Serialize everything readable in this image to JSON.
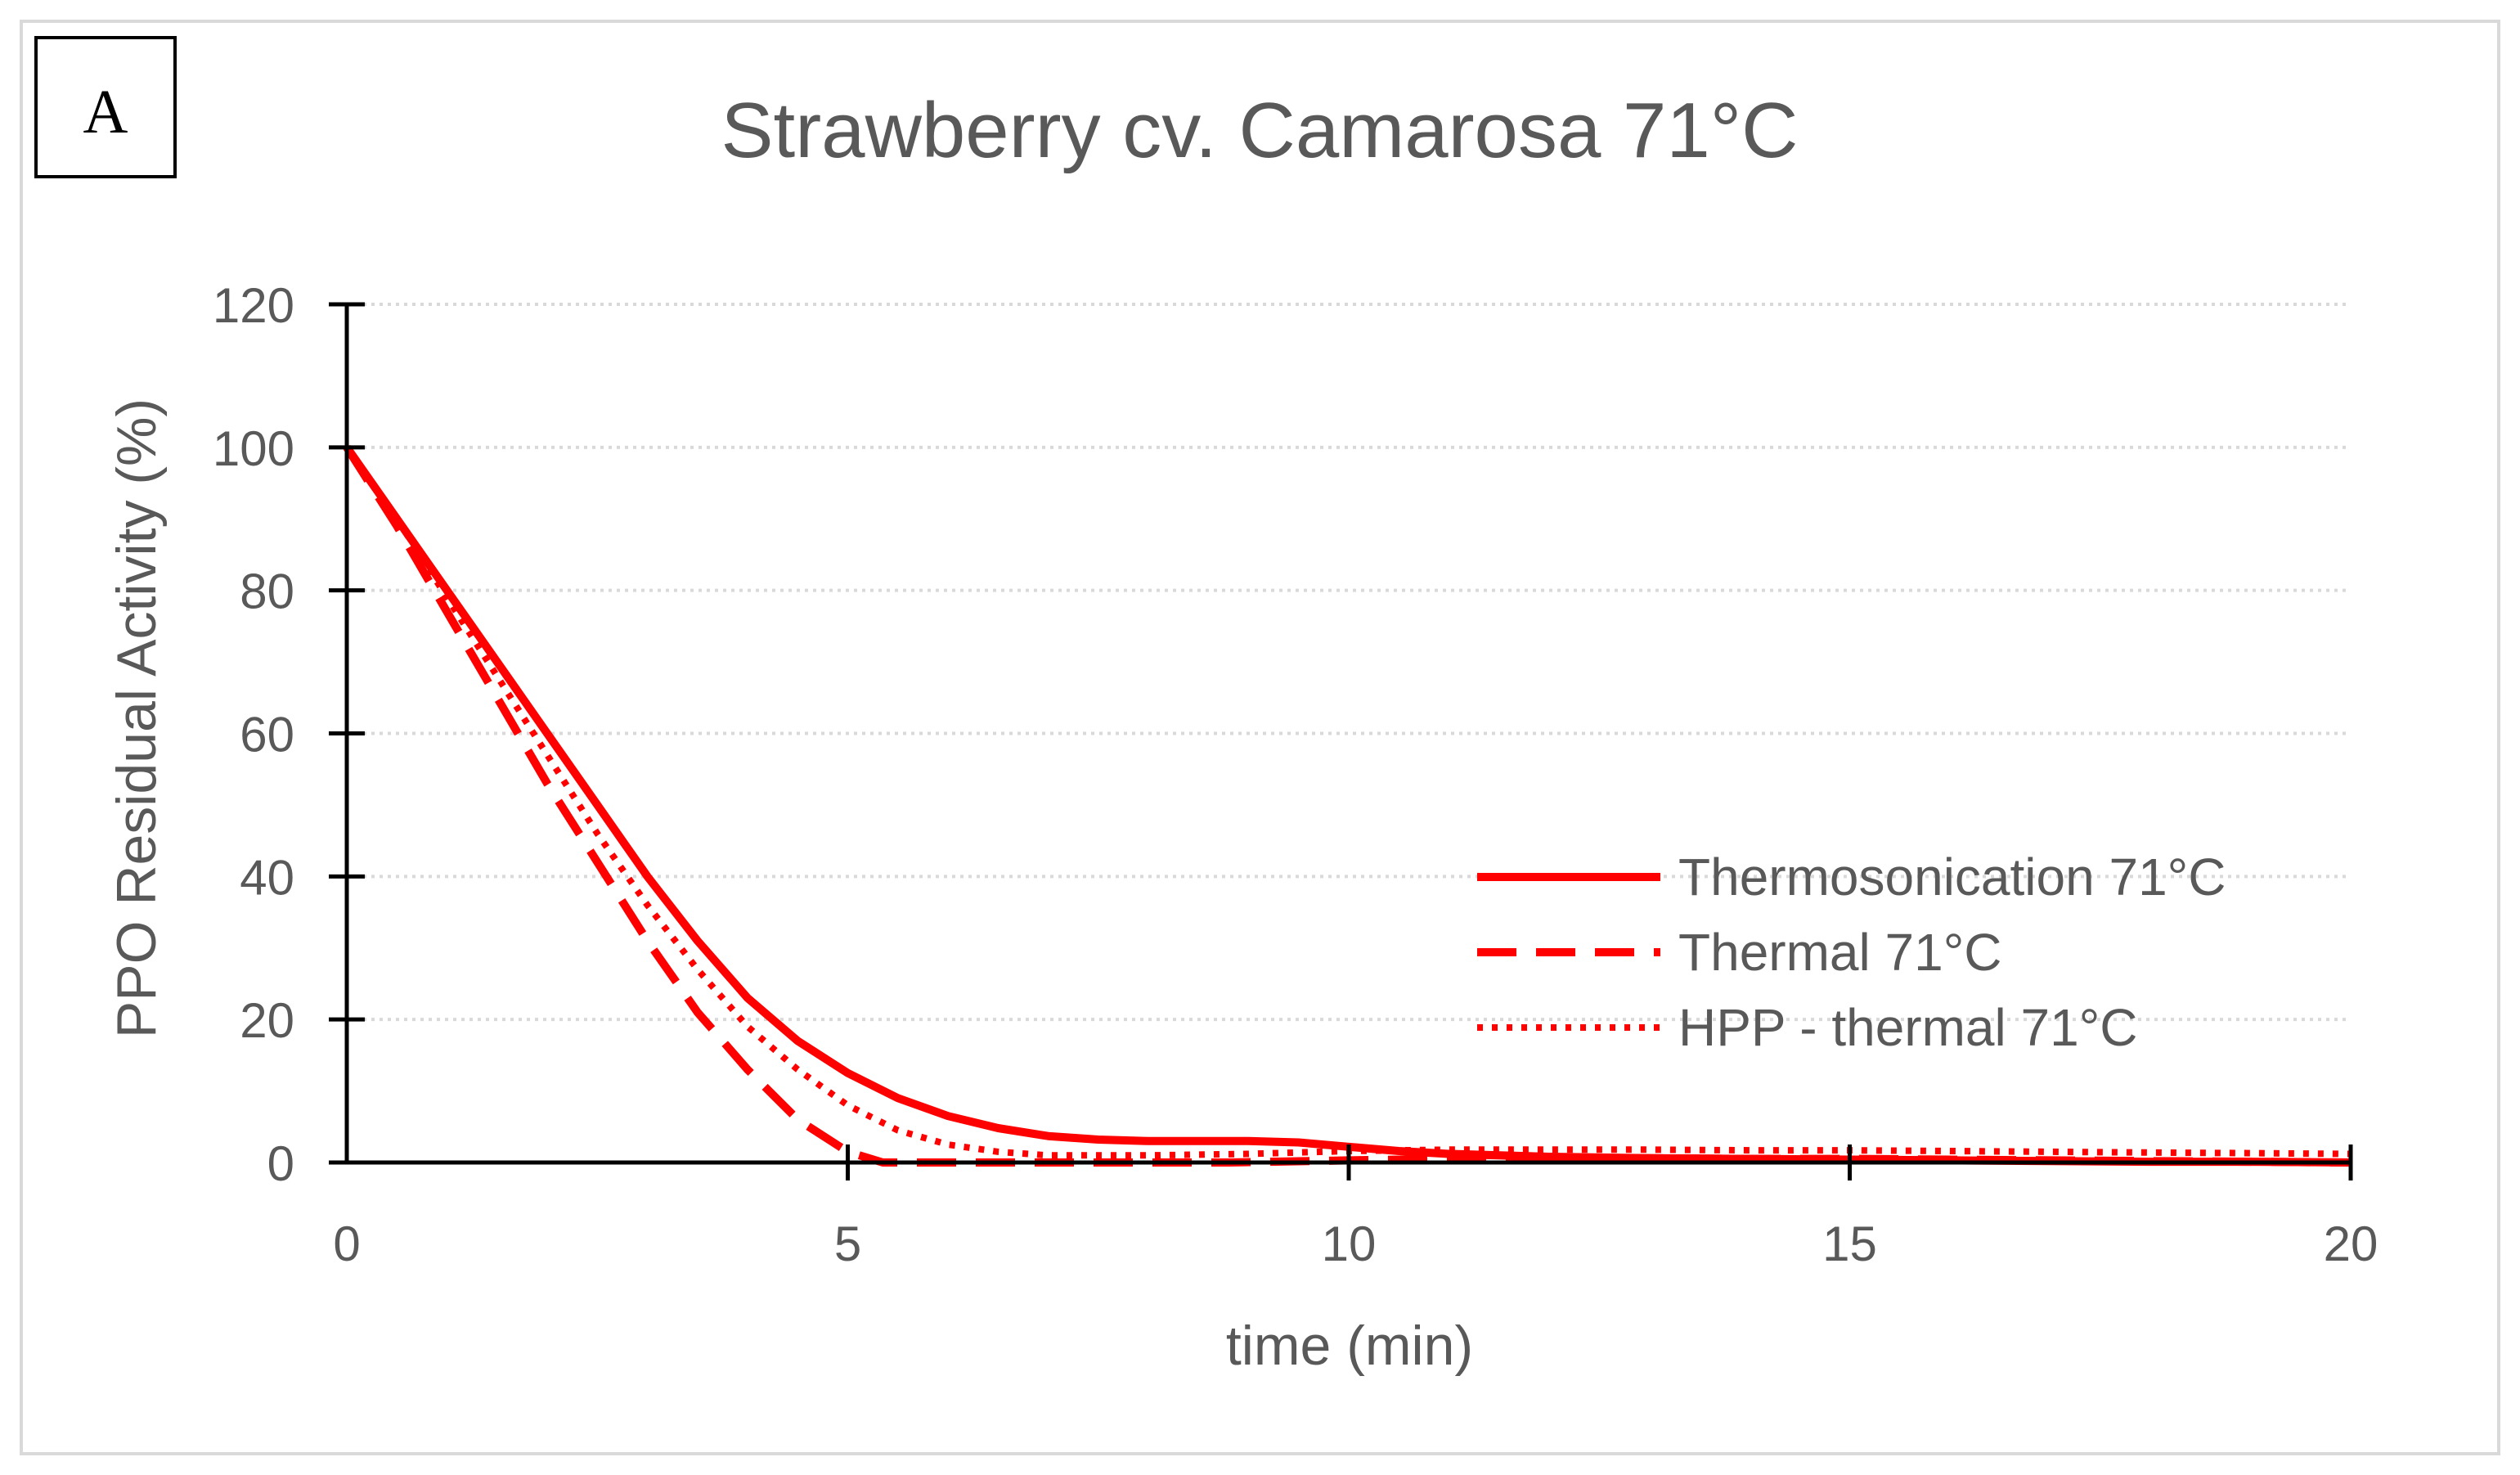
{
  "panel_label": "A",
  "chart_data": {
    "type": "line",
    "title": "Strawberry cv. Camarosa 71°C",
    "xlabel": "time (min)",
    "ylabel": "PPO Residual Activity (%)",
    "xlim": [
      0,
      20
    ],
    "ylim": [
      0,
      120
    ],
    "x_ticks": [
      0,
      5,
      10,
      15,
      20
    ],
    "y_ticks": [
      0,
      20,
      40,
      60,
      80,
      100,
      120
    ],
    "x_tick_labels": [
      "0",
      "5",
      "10",
      "15",
      "20"
    ],
    "y_tick_labels": [
      "0",
      "20",
      "40",
      "60",
      "80",
      "100",
      "120"
    ],
    "grid": "horizontal dotted",
    "legend_position": "center-right",
    "series": [
      {
        "name": "Thermosonication  71°C",
        "style": "solid",
        "color": "#ff0000",
        "x": [
          0,
          0.5,
          1,
          1.5,
          2,
          2.5,
          3,
          3.5,
          4,
          4.5,
          5,
          5.5,
          6,
          6.5,
          7,
          7.5,
          8,
          8.5,
          9,
          9.5,
          10,
          10.5,
          11,
          12,
          13,
          14,
          15,
          16,
          17,
          18,
          19,
          20
        ],
        "y": [
          100,
          90,
          80,
          70,
          60,
          50,
          40,
          31,
          23,
          17,
          12.5,
          9,
          6.5,
          4.8,
          3.7,
          3.2,
          3,
          3,
          3,
          2.8,
          2.2,
          1.6,
          1.2,
          0.8,
          0.6,
          0.5,
          0.4,
          0.3,
          0.2,
          0.1,
          0.1,
          0
        ]
      },
      {
        "name": "Thermal  71°C",
        "style": "dashed",
        "color": "#ff0000",
        "x": [
          0,
          0.5,
          1,
          1.5,
          2,
          2.5,
          3,
          3.5,
          4,
          4.5,
          5,
          5.35,
          8.8,
          10,
          11,
          12,
          13,
          14,
          15,
          16,
          17,
          18,
          19,
          20
        ],
        "y": [
          100,
          89,
          77,
          65,
          53,
          42,
          31,
          21,
          13,
          6,
          1.5,
          0,
          0,
          0.3,
          0.5,
          0.6,
          0.6,
          0.5,
          0.5,
          0.4,
          0.3,
          0.2,
          0.1,
          0
        ]
      },
      {
        "name": "HPP - thermal  71°C",
        "style": "dotted",
        "color": "#ff0000",
        "x": [
          0,
          0.5,
          1,
          1.5,
          2,
          2.5,
          3,
          3.5,
          4,
          4.5,
          5,
          5.5,
          6,
          6.5,
          7,
          7.5,
          8,
          9,
          10,
          11,
          12,
          13,
          14,
          15,
          16,
          17,
          18,
          19,
          20
        ],
        "y": [
          100,
          90,
          79,
          68,
          57,
          46,
          36,
          27,
          19,
          13,
          8,
          4.5,
          2.5,
          1.5,
          1,
          1,
          1,
          1.2,
          1.6,
          1.8,
          1.8,
          1.8,
          1.7,
          1.7,
          1.6,
          1.5,
          1.4,
          1.3,
          1.2
        ]
      }
    ]
  }
}
